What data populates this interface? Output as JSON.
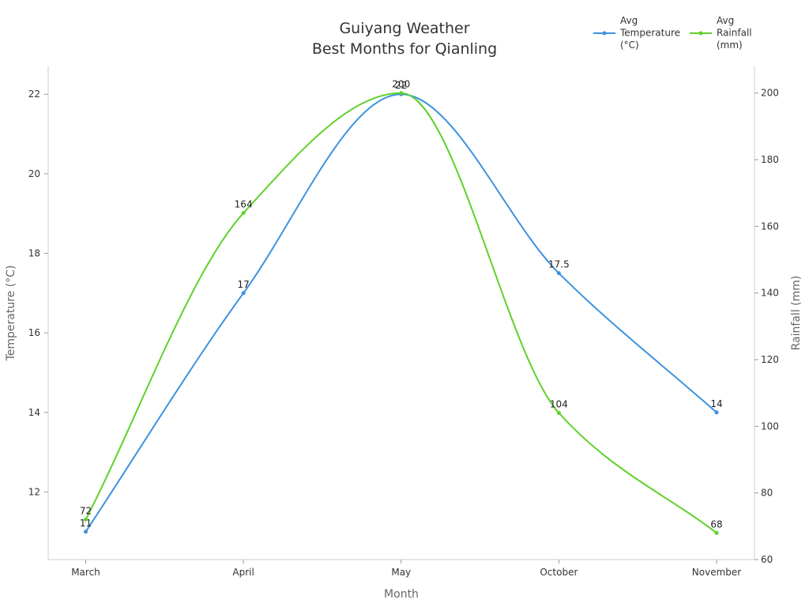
{
  "chart_data": {
    "type": "line",
    "title": "Guiyang Weather",
    "subtitle": "Best Months for Qianling",
    "xlabel": "Month",
    "categories": [
      "March",
      "April",
      "May",
      "October",
      "November"
    ],
    "y_left": {
      "label": "Temperature (°C)",
      "ylim": [
        10.3,
        22.7
      ],
      "ticks": [
        12,
        14,
        16,
        18,
        20,
        22
      ]
    },
    "y_right": {
      "label": "Rainfall (mm)",
      "ylim": [
        60,
        208
      ],
      "ticks": [
        60,
        80,
        100,
        120,
        140,
        160,
        180,
        200
      ]
    },
    "series": [
      {
        "name": "Avg Temperature (°C)",
        "legend_lines": [
          "Avg",
          "Temperature",
          "(°C)"
        ],
        "axis": "left",
        "color": "#3b93e0",
        "values": [
          11,
          17,
          22,
          17.5,
          14
        ],
        "labels": [
          "11",
          "17",
          "22",
          "17.5",
          "14"
        ]
      },
      {
        "name": "Avg Rainfall (mm)",
        "legend_lines": [
          "Avg",
          "Rainfall",
          "(mm)"
        ],
        "axis": "right",
        "color": "#5fd12a",
        "values": [
          72,
          164,
          200,
          104,
          68
        ],
        "labels": [
          "72",
          "164",
          "200",
          "104",
          "68"
        ]
      }
    ],
    "grid": false,
    "legend_position": "top-right",
    "smooth": true
  }
}
